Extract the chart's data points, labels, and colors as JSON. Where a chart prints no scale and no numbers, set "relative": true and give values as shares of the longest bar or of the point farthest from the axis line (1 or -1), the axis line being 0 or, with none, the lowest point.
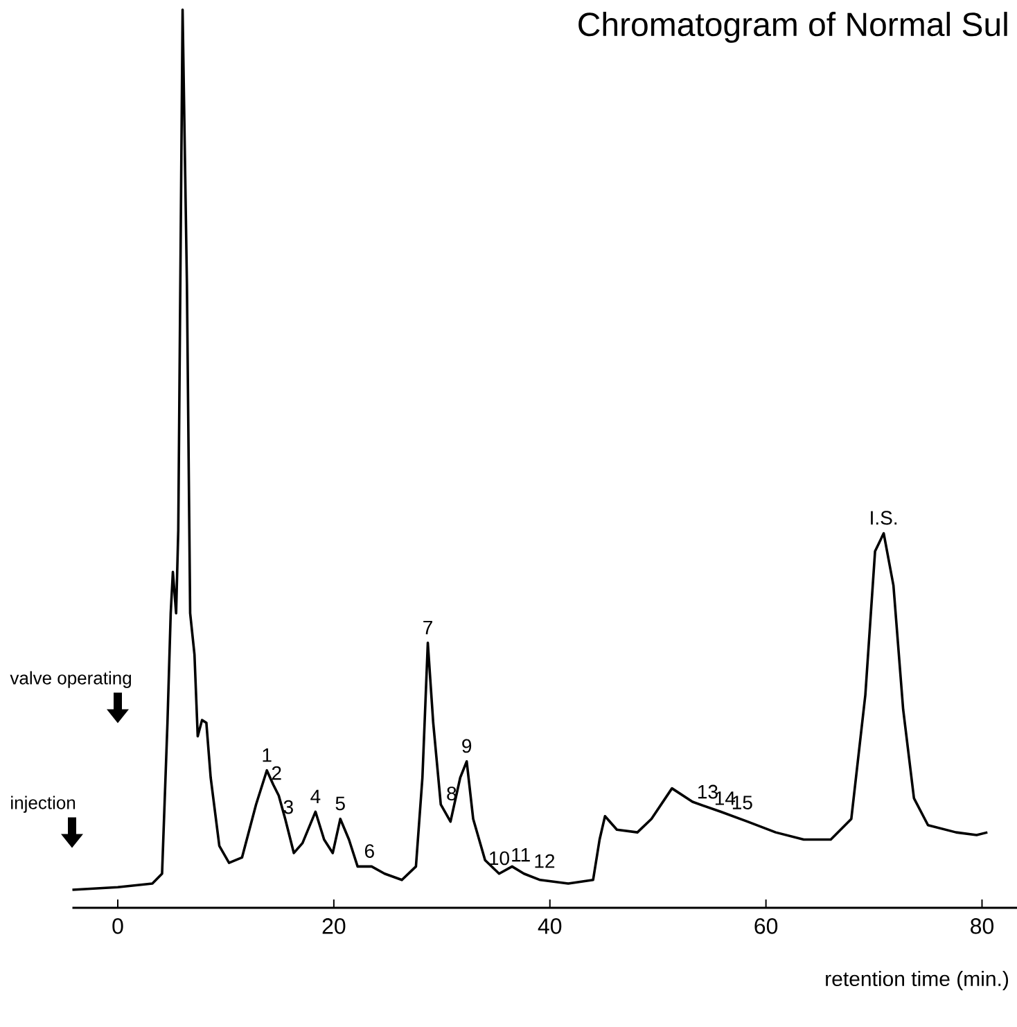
{
  "chart_data": {
    "type": "line",
    "title": "Chromatogram of Normal Sul",
    "xlabel": "retention time (min.)",
    "relative": true,
    "xlim": [
      -4.2,
      83.4
    ],
    "xticks": [
      0,
      20,
      40,
      60,
      80
    ],
    "color": "#000000",
    "x": [
      -4.2,
      0,
      3.2,
      4.1,
      4.6,
      4.9,
      5.1,
      5.4,
      5.6,
      6.0,
      6.4,
      6.7,
      7.1,
      7.4,
      7.8,
      8.2,
      8.6,
      9.4,
      10.3,
      11.5,
      12.8,
      13.8,
      14.4,
      14.9,
      15.5,
      16.3,
      17.1,
      18.3,
      19.1,
      19.9,
      20.6,
      21.4,
      22.2,
      23.5,
      24.7,
      26.3,
      27.6,
      28.2,
      28.7,
      29.2,
      29.9,
      30.8,
      31.7,
      32.3,
      32.9,
      34.0,
      35.3,
      36.5,
      37.6,
      39.1,
      41.7,
      44.0,
      44.6,
      45.1,
      46.2,
      48.1,
      49.4,
      51.3,
      53.2,
      55.8,
      58.3,
      60.9,
      63.5,
      66.0,
      67.9,
      69.2,
      70.1,
      70.9,
      71.8,
      72.7,
      73.7,
      75.0,
      77.6,
      79.5,
      80.5
    ],
    "values": [
      0.02,
      0.023,
      0.027,
      0.038,
      0.206,
      0.328,
      0.374,
      0.328,
      0.42,
      1.0,
      0.695,
      0.328,
      0.282,
      0.191,
      0.209,
      0.206,
      0.145,
      0.069,
      0.05,
      0.056,
      0.115,
      0.153,
      0.137,
      0.125,
      0.099,
      0.061,
      0.072,
      0.107,
      0.076,
      0.061,
      0.099,
      0.076,
      0.046,
      0.046,
      0.038,
      0.031,
      0.046,
      0.145,
      0.295,
      0.206,
      0.115,
      0.096,
      0.145,
      0.163,
      0.099,
      0.053,
      0.038,
      0.046,
      0.038,
      0.031,
      0.027,
      0.031,
      0.076,
      0.102,
      0.087,
      0.084,
      0.099,
      0.133,
      0.118,
      0.107,
      0.096,
      0.084,
      0.076,
      0.076,
      0.099,
      0.237,
      0.397,
      0.417,
      0.359,
      0.221,
      0.122,
      0.092,
      0.084,
      0.081,
      0.084
    ],
    "annotations": [
      "valve operating",
      "injection",
      {
        "text": "1",
        "x": 13.8,
        "y": 0.153
      },
      {
        "text": "2",
        "x": 14.7,
        "y": 0.133
      },
      {
        "text": "3",
        "x": 15.8,
        "y": 0.095
      },
      {
        "text": "4",
        "x": 18.3,
        "y": 0.107
      },
      {
        "text": "5",
        "x": 20.6,
        "y": 0.099
      },
      {
        "text": "6",
        "x": 23.3,
        "y": 0.046
      },
      {
        "text": "7",
        "x": 28.7,
        "y": 0.295
      },
      {
        "text": "8",
        "x": 30.9,
        "y": 0.11
      },
      {
        "text": "9",
        "x": 32.3,
        "y": 0.163
      },
      {
        "text": "10",
        "x": 35.3,
        "y": 0.038
      },
      {
        "text": "11",
        "x": 37.3,
        "y": 0.042
      },
      {
        "text": "12",
        "x": 39.5,
        "y": 0.035
      },
      {
        "text": "13",
        "x": 54.6,
        "y": 0.112
      },
      {
        "text": "14",
        "x": 56.2,
        "y": 0.105
      },
      {
        "text": "15",
        "x": 57.8,
        "y": 0.1
      },
      {
        "text": "I.S.",
        "x": 70.9,
        "y": 0.417
      }
    ]
  }
}
